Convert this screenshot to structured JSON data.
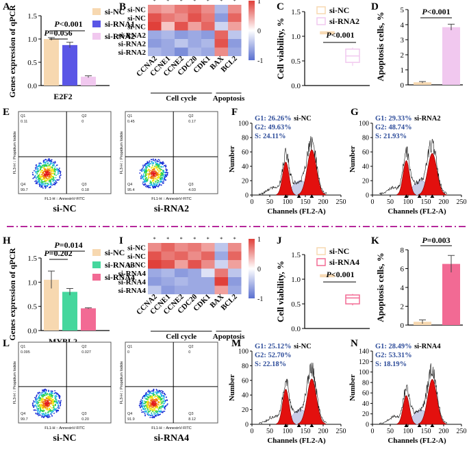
{
  "colors": {
    "nc": "#f7d8b0",
    "rna1": "#5a56e6",
    "rna2": "#f1c8ef",
    "rna3": "#45d79d",
    "rna4": "#f26a94",
    "hist_fill": "#e3100e",
    "stat_blue": "#2d4c9a",
    "divider": "#b5279b",
    "heat_hi": "#e0403a",
    "heat_lo": "#5a70d0"
  },
  "panels": {
    "A": "A",
    "B": "B",
    "C": "C",
    "D": "D",
    "E": "E",
    "F": "F",
    "G": "G",
    "H": "H",
    "I": "I",
    "J": "J",
    "K": "K",
    "L": "L",
    "M": "M",
    "N": "N"
  },
  "chart_data": [
    {
      "id": "A",
      "type": "bar",
      "ylabel": "Genes expression of qPCR",
      "xlabel": "E2F2",
      "ylim": [
        0,
        1.5
      ],
      "yticks": [
        "0.0",
        "0.5",
        "1.0",
        "1.5"
      ],
      "series": [
        {
          "name": "si-NC",
          "color": "#f7d8b0",
          "value": 1.0,
          "err": 0.03
        },
        {
          "name": "si-RNA1",
          "color": "#5a56e6",
          "value": 0.87,
          "err": 0.06
        },
        {
          "name": "si-RNA2",
          "color": "#f1c8ef",
          "value": 0.19,
          "err": 0.02
        }
      ],
      "stats": [
        "P<0.001",
        "P=0.056"
      ]
    },
    {
      "id": "B",
      "type": "heatmap",
      "rows": [
        "si-NC",
        "si-NC",
        "si-NC",
        "si-RNA2",
        "si-RNA2",
        "si-RNA2"
      ],
      "cols": [
        "CCNA2",
        "CCNE1",
        "CCNE2",
        "CDC20",
        "CDK1",
        "BAX",
        "BCL2"
      ],
      "values": [
        [
          0.6,
          0.5,
          0.7,
          0.8,
          0.6,
          -0.5,
          0.6
        ],
        [
          0.9,
          0.7,
          0.6,
          0.9,
          0.7,
          -0.7,
          0.8
        ],
        [
          1.0,
          0.3,
          0.9,
          0.5,
          0.8,
          -0.3,
          0.5
        ],
        [
          -0.6,
          -0.5,
          -0.7,
          -0.6,
          -0.7,
          0.8,
          -0.4
        ],
        [
          -0.7,
          -0.6,
          -0.4,
          -0.6,
          -0.5,
          0.9,
          -0.7
        ],
        [
          -0.5,
          -0.6,
          -0.8,
          -0.5,
          -0.6,
          0.6,
          -0.6
        ]
      ],
      "scale": [
        "1",
        "0",
        "-1"
      ],
      "groups": [
        "Cell cycle",
        "Apoptosis"
      ]
    },
    {
      "id": "C",
      "type": "box",
      "ylabel": "Cell viability, %",
      "ylim": [
        0,
        1.5
      ],
      "yticks": [
        "0.0",
        "0.5",
        "1.0",
        "1.5"
      ],
      "series": [
        {
          "name": "si-NC",
          "color": "#f7d8b0",
          "q1": 1.05,
          "med": 1.07,
          "q3": 1.09,
          "min": 1.04,
          "max": 1.1
        },
        {
          "name": "si-RNA2",
          "color": "#f1c8ef",
          "q1": 0.47,
          "med": 0.6,
          "q3": 0.74,
          "min": 0.4,
          "max": 0.77
        }
      ],
      "stats": [
        "P<0.001"
      ]
    },
    {
      "id": "D",
      "type": "bar",
      "ylabel": "Apoptosis cells, %",
      "ylim": [
        0,
        5
      ],
      "yticks": [
        "0",
        "1",
        "2",
        "3",
        "4",
        "5"
      ],
      "series": [
        {
          "name": "si-NC",
          "color": "#f7d8b0",
          "value": 0.17,
          "err": 0.05
        },
        {
          "name": "si-RNA2",
          "color": "#f1c8ef",
          "value": 3.83,
          "err": 0.2
        }
      ],
      "stats": [
        "P<0.001"
      ]
    },
    {
      "id": "E",
      "type": "scatter",
      "labels": [
        "si-NC",
        "si-RNA2"
      ],
      "quads": [
        [
          "0.11",
          "0",
          "99.7",
          "0.18"
        ],
        [
          "0.45",
          "0.17",
          "95.4",
          "4.03"
        ]
      ],
      "axis_y": "FL3-H :: Propidium Iodide",
      "axis_x": "FL1-H :: AnnexinV-FITC"
    },
    {
      "id": "F",
      "type": "area",
      "label": "si-NC",
      "stats": [
        "G1: 26.26%",
        "G2: 49.63%",
        "S: 24.11%"
      ],
      "xlabel": "Channels (FL2-A)",
      "ylabel": "Number",
      "yticks": [
        "0",
        "20",
        "40",
        "60",
        "80",
        "100"
      ],
      "xticks": [
        "0",
        "50",
        "100",
        "150",
        "200",
        "250"
      ]
    },
    {
      "id": "G",
      "type": "area",
      "label": "si-RNA2",
      "stats": [
        "G1: 29.33%",
        "G2: 48.74%",
        "S: 21.93%"
      ],
      "xlabel": "Channels (FL2-A)",
      "ylabel": "Number",
      "yticks": [
        "0",
        "20",
        "40",
        "60",
        "80",
        "100"
      ],
      "xticks": [
        "0",
        "50",
        "100",
        "150",
        "200",
        "250"
      ]
    },
    {
      "id": "H",
      "type": "bar",
      "ylabel": "Genes expression of qPCR",
      "xlabel": "MYBL2",
      "ylim": [
        0,
        1.5
      ],
      "yticks": [
        "0.0",
        "0.5",
        "1.0",
        "1.5"
      ],
      "series": [
        {
          "name": "si-NC",
          "color": "#f7d8b0",
          "value": 1.05,
          "err": 0.18
        },
        {
          "name": "si-RNA3",
          "color": "#45d79d",
          "value": 0.8,
          "err": 0.07
        },
        {
          "name": "si-RNA4",
          "color": "#f26a94",
          "value": 0.46,
          "err": 0.01
        }
      ],
      "stats": [
        "P=0.014",
        "P=0.202"
      ]
    },
    {
      "id": "I",
      "type": "heatmap",
      "rows": [
        "si-NC",
        "si-NC",
        "si-NC",
        "si-RNA4",
        "si-RNA4",
        "si-RNA4"
      ],
      "cols": [
        "CCNA2",
        "CCNE1",
        "CCNE2",
        "CDC20",
        "CDK1",
        "BAX",
        "BCL2"
      ],
      "values": [
        [
          0.6,
          0.8,
          0.6,
          0.7,
          0.5,
          -0.4,
          0.6
        ],
        [
          0.9,
          0.7,
          0.8,
          0.6,
          0.8,
          -0.6,
          0.8
        ],
        [
          1.0,
          0.9,
          0.5,
          0.9,
          0.6,
          -0.3,
          0.5
        ],
        [
          -0.6,
          -0.5,
          -0.7,
          -0.6,
          -0.2,
          0.7,
          -0.4
        ],
        [
          -0.7,
          -0.6,
          -0.5,
          -0.6,
          -0.6,
          1.0,
          -0.7
        ],
        [
          -0.4,
          -0.7,
          -0.6,
          -0.6,
          -0.6,
          0.5,
          -0.6
        ]
      ],
      "scale": [
        "1",
        "0",
        "-1"
      ],
      "groups": [
        "Cell cycle",
        "Apoptosis"
      ]
    },
    {
      "id": "J",
      "type": "box",
      "ylabel": "Cell viability, %",
      "ylim": [
        0,
        1.5
      ],
      "yticks": [
        "0.0",
        "0.5",
        "1.0",
        "1.5"
      ],
      "series": [
        {
          "name": "si-NC",
          "color": "#f7d8b0",
          "q1": 1.05,
          "med": 1.07,
          "q3": 1.09,
          "min": 1.04,
          "max": 1.1
        },
        {
          "name": "si-RNA4",
          "color": "#f26a94",
          "q1": 0.5,
          "med": 0.62,
          "q3": 0.68,
          "min": 0.47,
          "max": 0.7
        }
      ],
      "stats": [
        "P<0.001"
      ]
    },
    {
      "id": "K",
      "type": "bar",
      "ylabel": "Apoptosis cells, %",
      "ylim": [
        0,
        8
      ],
      "yticks": [
        "0",
        "2",
        "4",
        "6",
        "8"
      ],
      "series": [
        {
          "name": "si-NC",
          "color": "#f7d8b0",
          "value": 0.35,
          "err": 0.2
        },
        {
          "name": "si-RNA4",
          "color": "#f26a94",
          "value": 6.5,
          "err": 0.9
        }
      ],
      "stats": [
        "P=0.003"
      ]
    },
    {
      "id": "L",
      "type": "scatter",
      "labels": [
        "si-NC",
        "si-RNA4"
      ],
      "quads": [
        [
          "0.095",
          "0.027",
          "99.7",
          "0.20"
        ],
        [
          "0",
          "0",
          "91.9",
          "8.12"
        ]
      ],
      "axis_y": "FL3-H :: Propidium Iodide",
      "axis_x": "FL1-H :: AnnexinV-FITC"
    },
    {
      "id": "M",
      "type": "area",
      "label": "si-NC",
      "stats": [
        "G1: 25.12%",
        "G2: 52.70%",
        "S: 22.18%"
      ],
      "xlabel": "Channels (FL2-A)",
      "ylabel": "Number",
      "yticks": [
        "0",
        "20",
        "40",
        "60",
        "80",
        "100"
      ],
      "xticks": [
        "0",
        "50",
        "100",
        "150",
        "200",
        "250"
      ]
    },
    {
      "id": "N",
      "type": "area",
      "label": "si-RNA4",
      "stats": [
        "G1: 28.49%",
        "G2: 53.31%",
        "S: 18.19%"
      ],
      "xlabel": "Channels (FL2-A)",
      "ylabel": "Number",
      "yticks": [
        "0",
        "20",
        "40",
        "60",
        "80",
        "100",
        "120",
        "140"
      ],
      "xticks": [
        "0",
        "50",
        "100",
        "150",
        "200",
        "250"
      ]
    }
  ]
}
